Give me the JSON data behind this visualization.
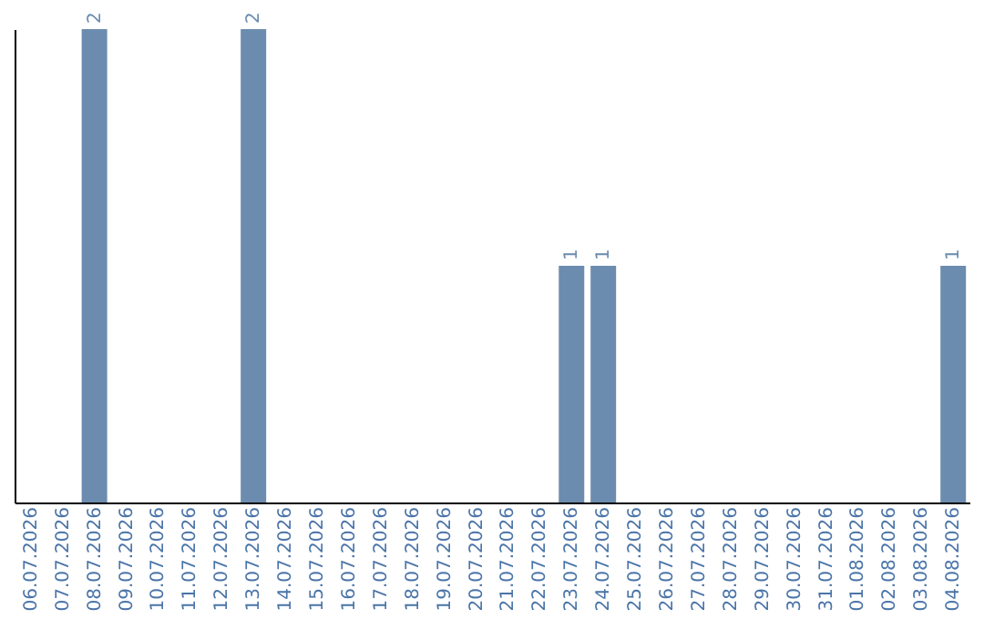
{
  "chart_data": {
    "type": "bar",
    "categories": [
      "06.07.2026",
      "07.07.2026",
      "08.07.2026",
      "09.07.2026",
      "10.07.2026",
      "11.07.2026",
      "12.07.2026",
      "13.07.2026",
      "14.07.2026",
      "15.07.2026",
      "16.07.2026",
      "17.07.2026",
      "18.07.2026",
      "19.07.2026",
      "20.07.2026",
      "21.07.2026",
      "22.07.2026",
      "23.07.2026",
      "24.07.2026",
      "25.07.2026",
      "26.07.2026",
      "27.07.2026",
      "28.07.2026",
      "29.07.2026",
      "30.07.2026",
      "31.07.2026",
      "01.08.2026",
      "02.08.2026",
      "03.08.2026",
      "04.08.2026"
    ],
    "values": [
      0,
      0,
      2,
      0,
      0,
      0,
      0,
      2,
      0,
      0,
      0,
      0,
      0,
      0,
      0,
      0,
      0,
      1,
      1,
      0,
      0,
      0,
      0,
      0,
      0,
      0,
      0,
      0,
      0,
      1
    ],
    "value_labels": [
      null,
      null,
      "2",
      null,
      null,
      null,
      null,
      "2",
      null,
      null,
      null,
      null,
      null,
      null,
      null,
      null,
      null,
      "1",
      "1",
      null,
      null,
      null,
      null,
      null,
      null,
      null,
      null,
      null,
      null,
      "1"
    ],
    "color": "#6b8cae"
  }
}
